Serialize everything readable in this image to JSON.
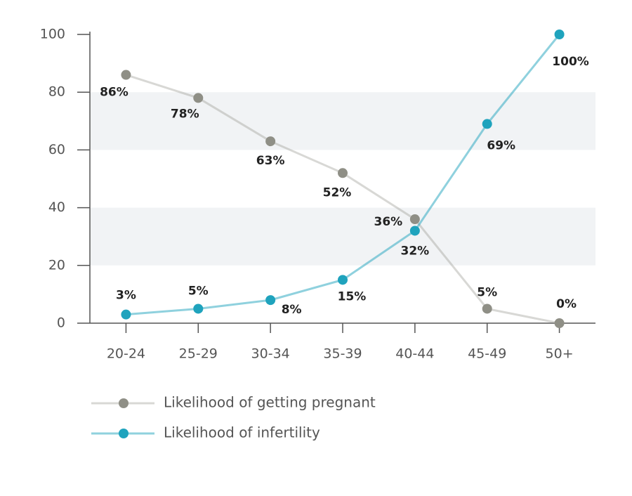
{
  "chart_data": {
    "type": "line",
    "categories": [
      "20-24",
      "25-29",
      "30-34",
      "35-39",
      "40-44",
      "45-49",
      "50+"
    ],
    "series": [
      {
        "name": "Likelihood of getting pregnant",
        "color": "#8f8f86",
        "values": [
          86,
          78,
          63,
          52,
          36,
          5,
          0
        ],
        "value_labels": [
          "86%",
          "78%",
          "63%",
          "52%",
          "36%",
          "5%",
          "0%"
        ]
      },
      {
        "name": "Likelihood of infertility",
        "color": "#1fa3bd",
        "values": [
          3,
          5,
          8,
          15,
          32,
          69,
          100
        ],
        "value_labels": [
          "3%",
          "5%",
          "8%",
          "15%",
          "32%",
          "69%",
          "100%"
        ]
      }
    ],
    "ylim": [
      0,
      100
    ],
    "yticks": [
      0,
      20,
      40,
      60,
      80,
      100
    ],
    "grid": true
  }
}
